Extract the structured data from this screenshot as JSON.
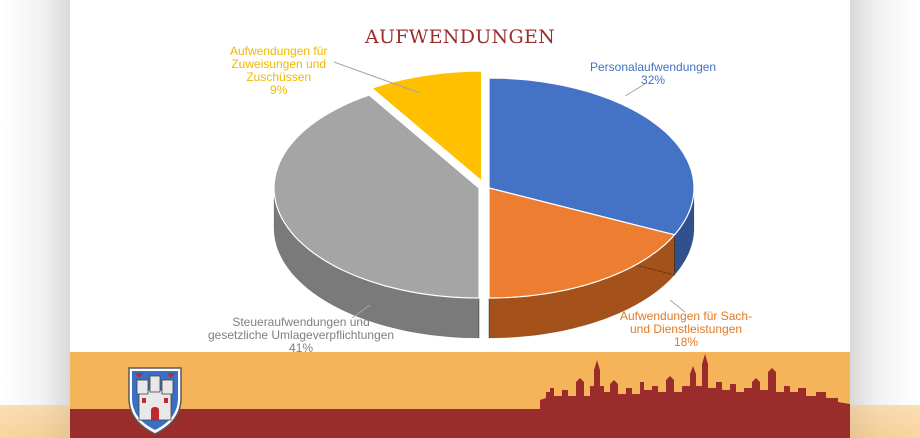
{
  "chart_data": {
    "type": "pie",
    "title": "AUFWENDUNGEN",
    "slices": [
      {
        "label_lines": [
          "Personalaufwendungen"
        ],
        "percent_label": "32%",
        "value": 32,
        "color": "#4472c4",
        "side_color": "#2f528f"
      },
      {
        "label_lines": [
          "Aufwendungen für Sach-",
          "und Dienstleistungen"
        ],
        "percent_label": "18%",
        "value": 18,
        "color": "#ed7d31",
        "side_color": "#a5521a"
      },
      {
        "label_lines": [
          "Steueraufwendungen und",
          "gesetzliche Umlageverpflichtungen"
        ],
        "percent_label": "41%",
        "value": 41,
        "color": "#a5a5a5",
        "side_color": "#7a7a7a"
      },
      {
        "label_lines": [
          "Aufwendungen für",
          "Zuweisungen und",
          "Zuschüssen"
        ],
        "percent_label": "9%",
        "value": 9,
        "color": "#ffc000",
        "side_color": "#b88a00"
      }
    ],
    "label_colors": [
      "#4472c4",
      "#e07a24",
      "#7f7f7f",
      "#f2b800"
    ],
    "title_color": "#9b2c2c"
  },
  "footer": {
    "band_color": "#f6b45a",
    "bottom_color": "#9b2c2c",
    "crest_icon": "coat-of-arms-icon",
    "skyline_icon": "town-skyline-icon"
  }
}
